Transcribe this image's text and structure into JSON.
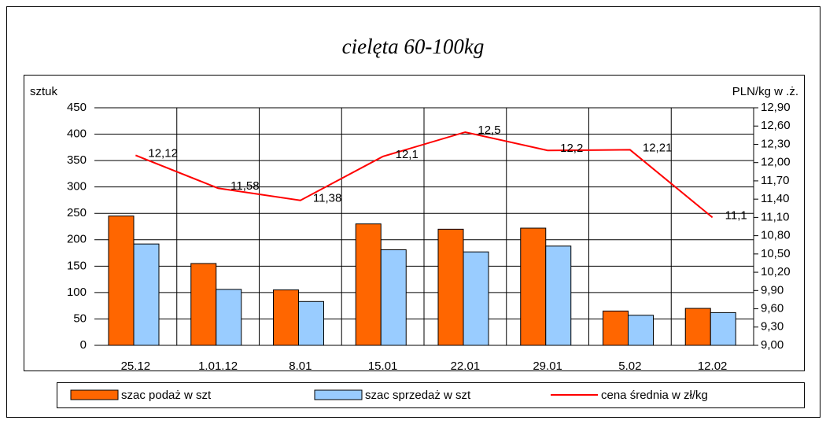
{
  "chart_data": {
    "type": "bar_line",
    "title": "cielęta 60-100kg",
    "y_label": "sztuk",
    "y2_label": "PLN/kg w .ż.",
    "categories": [
      "25.12",
      "1.01.12",
      "8.01",
      "15.01",
      "22.01",
      "29.01",
      "5.02",
      "12.02"
    ],
    "series": [
      {
        "name": "szac podaż w szt",
        "type": "bar",
        "color": "#ff6600",
        "values": [
          245,
          155,
          105,
          230,
          220,
          222,
          65,
          70
        ]
      },
      {
        "name": "szac sprzedaż w szt",
        "type": "bar",
        "color": "#99ccff",
        "values": [
          192,
          106,
          83,
          181,
          177,
          188,
          57,
          62
        ]
      },
      {
        "name": "cena średnia w zł/kg",
        "type": "line",
        "axis": "y2",
        "color": "#ff0000",
        "values": [
          12.12,
          11.58,
          11.38,
          12.1,
          12.5,
          12.2,
          12.21,
          11.1
        ],
        "value_labels": [
          "12,12",
          "11,58",
          "11,38",
          "12,1",
          "12,5",
          "12,2",
          "12,21",
          "11,1"
        ]
      }
    ],
    "ylim": [
      0,
      450
    ],
    "yticks": [
      0,
      50,
      100,
      150,
      200,
      250,
      300,
      350,
      400,
      450
    ],
    "y2lim": [
      9,
      12.9
    ],
    "y2ticks": [
      {
        "value": 9,
        "label": "9,00"
      },
      {
        "value": 9.3,
        "label": "9,30"
      },
      {
        "value": 9.6,
        "label": "9,60"
      },
      {
        "value": 9.9,
        "label": "9,90"
      },
      {
        "value": 10.2,
        "label": "10,20"
      },
      {
        "value": 10.5,
        "label": "10,50"
      },
      {
        "value": 10.8,
        "label": "10,80"
      },
      {
        "value": 11.1,
        "label": "11,10"
      },
      {
        "value": 11.4,
        "label": "11,40"
      },
      {
        "value": 11.7,
        "label": "11,70"
      },
      {
        "value": 12,
        "label": "12,00"
      },
      {
        "value": 12.3,
        "label": "12,30"
      },
      {
        "value": 12.6,
        "label": "12,60"
      },
      {
        "value": 12.9,
        "label": "12,90"
      }
    ],
    "grid": true
  }
}
